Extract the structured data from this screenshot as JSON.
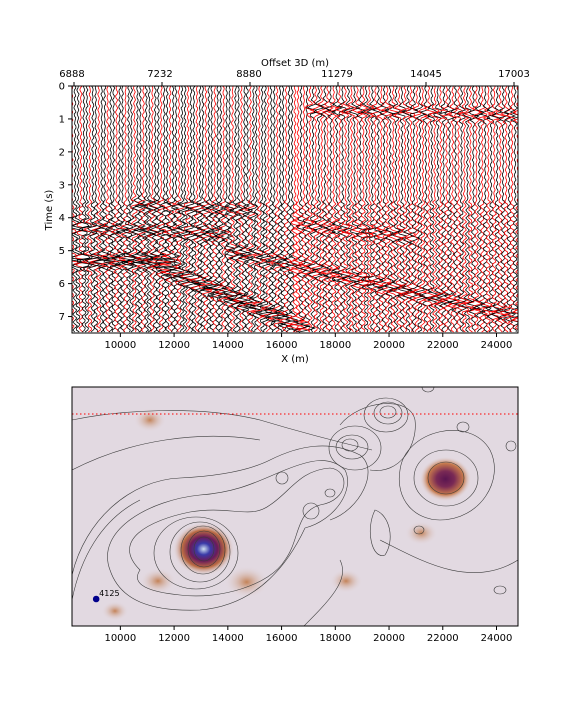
{
  "chart_data": [
    {
      "type": "seismic-wiggle",
      "top_xlabel": "Offset 3D (m)",
      "top_ticks": [
        "6888",
        "7232",
        "8880",
        "11279",
        "14045",
        "17003"
      ],
      "xlabel": "X (m)",
      "ylabel": "Time (s)",
      "xlim": [
        8200,
        24800
      ],
      "ylim": [
        7.5,
        0
      ],
      "x_ticks": [
        10000,
        12000,
        14000,
        16000,
        18000,
        20000,
        22000,
        24000
      ],
      "y_ticks": [
        0,
        1,
        2,
        3,
        4,
        5,
        6,
        7
      ],
      "series_colors": {
        "positive": "#ff0000",
        "negative": "#000000"
      },
      "events": [
        {
          "x_start": 8200,
          "x_end": 12000,
          "t_start": 5.3,
          "t_end": 5.3,
          "strength": 1.0
        },
        {
          "x_start": 11500,
          "x_end": 17000,
          "t_start": 5.5,
          "t_end": 7.4,
          "strength": 1.0
        },
        {
          "x_start": 8200,
          "x_end": 14000,
          "t_start": 4.3,
          "t_end": 4.5,
          "strength": 0.6
        },
        {
          "x_start": 14000,
          "x_end": 24800,
          "t_start": 5.0,
          "t_end": 7.0,
          "strength": 0.7
        },
        {
          "x_start": 17000,
          "x_end": 24800,
          "t_start": 0.7,
          "t_end": 0.9,
          "strength": 0.7
        },
        {
          "x_start": 10500,
          "x_end": 15000,
          "t_start": 3.6,
          "t_end": 3.8,
          "strength": 0.5
        },
        {
          "x_start": 16500,
          "x_end": 21000,
          "t_start": 4.2,
          "t_end": 4.6,
          "strength": 0.5
        }
      ]
    },
    {
      "type": "heatmap-contour",
      "xlim": [
        8200,
        24800
      ],
      "x_ticks": [
        10000,
        12000,
        14000,
        16000,
        18000,
        20000,
        22000,
        24000
      ],
      "background_color": "#e2d9e1",
      "survey_line_color": "#ff0000",
      "station": {
        "x": 9100,
        "label": "4125",
        "color": "#00008b"
      },
      "anomalies": [
        {
          "x": 13100,
          "level": 1.0
        },
        {
          "x": 22100,
          "level": 0.8
        },
        {
          "x": 14700,
          "level": 0.5
        },
        {
          "x": 11400,
          "level": 0.35
        },
        {
          "x": 18400,
          "level": 0.3
        },
        {
          "x": 11100,
          "level": 0.3
        },
        {
          "x": 21200,
          "level": 0.3
        },
        {
          "x": 9800,
          "level": 0.2
        }
      ]
    }
  ]
}
